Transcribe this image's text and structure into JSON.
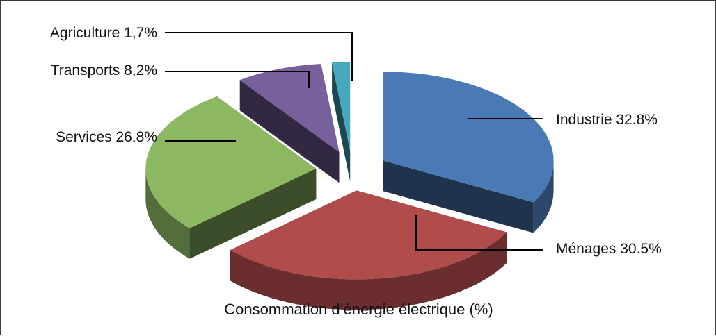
{
  "chart_data": {
    "type": "pie",
    "title": "Consommation d’énergie électrique (%)",
    "slices": [
      {
        "name": "Industrie",
        "value": 32.8,
        "label": "Industrie 32.8%",
        "color": "#4a7ab5"
      },
      {
        "name": "Ménages",
        "value": 30.5,
        "label": "Ménages 30.5%",
        "color": "#b04c4c"
      },
      {
        "name": "Services",
        "value": 26.8,
        "label": "Services 26.8%",
        "color": "#8cb862"
      },
      {
        "name": "Transports",
        "value": 8.2,
        "label": "Transports 8,2%",
        "color": "#77609b"
      },
      {
        "name": "Agriculture",
        "value": 1.7,
        "label": "Agriculture 1,7%",
        "color": "#45a8bd"
      }
    ],
    "style": "3d-exploded",
    "legend": "none"
  }
}
